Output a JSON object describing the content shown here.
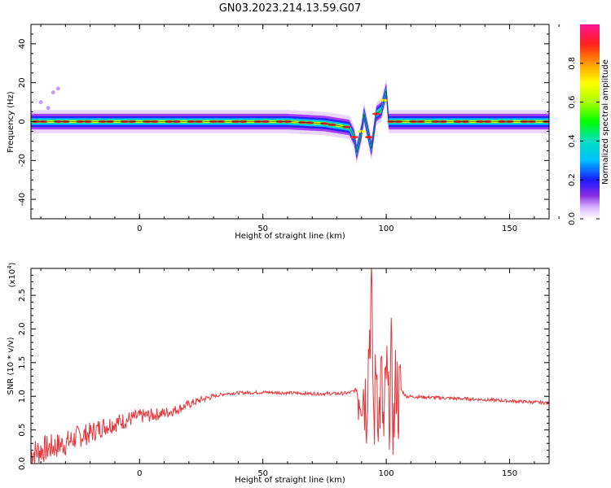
{
  "title": "GN03.2023.214.13.59.G07",
  "chart_data": [
    {
      "type": "heatmap",
      "xlabel": "Height of straight line (km)",
      "ylabel": "Frequency (Hz)",
      "xlim": [
        -44,
        166
      ],
      "ylim": [
        -50,
        50
      ],
      "xticks": [
        0,
        50,
        100,
        150
      ],
      "yticks": [
        40,
        20,
        0,
        -20,
        -40
      ],
      "colorbar": {
        "label": "Normalized spectral amplitude",
        "range": [
          0,
          1
        ],
        "ticks": [
          "0.0",
          "0.2",
          "0.4",
          "0.6",
          "0.8"
        ]
      },
      "ridge": {
        "x": [
          -44,
          -30,
          -10,
          0,
          20,
          40,
          60,
          75,
          80,
          85,
          87,
          88,
          90,
          91,
          93,
          94,
          96,
          98,
          100,
          101,
          105,
          120,
          140,
          166
        ],
        "y": [
          0,
          0,
          0,
          0,
          0,
          0,
          0,
          -1,
          -2,
          -3,
          -8,
          -16,
          -5,
          4,
          -8,
          -14,
          4,
          6,
          16,
          0,
          0,
          0,
          0,
          0
        ]
      }
    },
    {
      "type": "line",
      "xlabel": "Height of straight line (km)",
      "ylabel": "SNR (10 * v/v)",
      "y_multiplier": "(x10",
      "y_exponent": "4",
      "xlim": [
        -44,
        166
      ],
      "ylim": [
        0,
        2.9
      ],
      "xticks": [
        0,
        50,
        100,
        150
      ],
      "yticks": [
        "0.0",
        "0.5",
        "1.0",
        "1.5",
        "2.0",
        "2.5"
      ],
      "line_color": "#e8353a",
      "series": [
        {
          "x": [
            -44,
            -40,
            -35,
            -30,
            -25,
            -20,
            -15,
            -10,
            -5,
            0,
            5,
            10,
            15,
            20,
            25,
            30,
            35,
            40,
            50,
            60,
            70,
            80,
            85,
            88,
            90,
            91,
            92,
            93,
            94,
            95,
            96,
            97,
            98,
            99,
            100,
            101,
            102,
            103,
            104,
            105,
            106,
            108,
            120,
            140,
            166
          ],
          "y": [
            0.15,
            0.2,
            0.25,
            0.3,
            0.4,
            0.45,
            0.55,
            0.6,
            0.65,
            0.7,
            0.72,
            0.75,
            0.8,
            0.88,
            0.95,
            1.0,
            1.04,
            1.05,
            1.06,
            1.05,
            1.04,
            1.04,
            1.05,
            1.1,
            1.2,
            1.1,
            0.9,
            1.8,
            2.5,
            0.5,
            1.6,
            0.6,
            1.3,
            0.3,
            1.4,
            0.7,
            1.5,
            0.5,
            1.3,
            0.9,
            1.1,
            1.0,
            0.98,
            0.95,
            0.9
          ]
        }
      ]
    }
  ]
}
